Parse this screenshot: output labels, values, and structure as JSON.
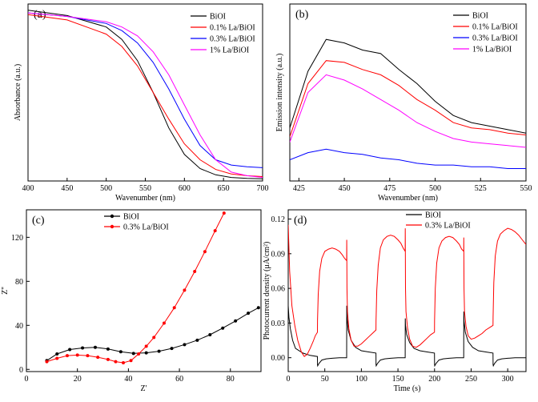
{
  "chart_data": [
    {
      "panel": "(a)",
      "type": "line",
      "xlabel": "Wavenumber (nm)",
      "ylabel": "Absorbance (a.u.)",
      "xlim": [
        400,
        700
      ],
      "ylim": [
        0,
        1
      ],
      "xticks": [
        400,
        450,
        500,
        550,
        600,
        650,
        700
      ],
      "legend_position": "top-right",
      "series": [
        {
          "name": "BiOI",
          "color": "#000000",
          "x": [
            400,
            450,
            500,
            520,
            540,
            560,
            580,
            600,
            620,
            640,
            660,
            680,
            700
          ],
          "y": [
            0.965,
            0.935,
            0.87,
            0.8,
            0.68,
            0.5,
            0.3,
            0.15,
            0.07,
            0.035,
            0.02,
            0.015,
            0.012
          ]
        },
        {
          "name": "0.1% La/BiOI",
          "color": "#ff0000",
          "x": [
            400,
            450,
            500,
            520,
            540,
            560,
            580,
            600,
            620,
            640,
            660,
            680,
            700
          ],
          "y": [
            0.94,
            0.91,
            0.83,
            0.76,
            0.65,
            0.5,
            0.35,
            0.21,
            0.12,
            0.065,
            0.04,
            0.03,
            0.025
          ]
        },
        {
          "name": "0.3% La/BiOI",
          "color": "#0000ff",
          "x": [
            400,
            450,
            500,
            520,
            540,
            560,
            580,
            600,
            620,
            640,
            660,
            680,
            700
          ],
          "y": [
            0.95,
            0.93,
            0.89,
            0.85,
            0.78,
            0.67,
            0.52,
            0.35,
            0.2,
            0.12,
            0.09,
            0.08,
            0.075
          ]
        },
        {
          "name": "1% La/BiOI",
          "color": "#ff00ff",
          "x": [
            400,
            450,
            500,
            520,
            540,
            560,
            580,
            600,
            620,
            640,
            660,
            680,
            700
          ],
          "y": [
            0.95,
            0.93,
            0.9,
            0.87,
            0.82,
            0.73,
            0.6,
            0.43,
            0.26,
            0.12,
            0.05,
            0.03,
            0.02
          ]
        }
      ]
    },
    {
      "panel": "(b)",
      "type": "line",
      "xlabel": "Wavenumber (nm)",
      "ylabel": "Emission intensity (a.u.)",
      "xlim": [
        420,
        550
      ],
      "ylim": [
        0,
        1
      ],
      "xticks": [
        425,
        450,
        475,
        500,
        525,
        550
      ],
      "legend_position": "top-right",
      "series": [
        {
          "name": "BiOI",
          "color": "#000000",
          "x": [
            420,
            430,
            440,
            450,
            460,
            470,
            480,
            490,
            500,
            510,
            520,
            530,
            540,
            550
          ],
          "y": [
            0.3,
            0.62,
            0.8,
            0.78,
            0.74,
            0.72,
            0.63,
            0.55,
            0.45,
            0.37,
            0.33,
            0.31,
            0.29,
            0.27
          ]
        },
        {
          "name": "0.1% La/BiOI",
          "color": "#ff0000",
          "x": [
            420,
            430,
            440,
            450,
            460,
            470,
            480,
            490,
            500,
            510,
            520,
            530,
            540,
            550
          ],
          "y": [
            0.25,
            0.55,
            0.68,
            0.67,
            0.63,
            0.6,
            0.54,
            0.46,
            0.4,
            0.33,
            0.3,
            0.29,
            0.27,
            0.26
          ]
        },
        {
          "name": "0.3% La/BiOI",
          "color": "#0000ff",
          "x": [
            420,
            430,
            440,
            450,
            460,
            470,
            480,
            490,
            500,
            510,
            520,
            530,
            540,
            550
          ],
          "y": [
            0.12,
            0.16,
            0.18,
            0.16,
            0.15,
            0.13,
            0.12,
            0.1,
            0.09,
            0.09,
            0.08,
            0.08,
            0.07,
            0.07
          ]
        },
        {
          "name": "1% La/BiOI",
          "color": "#ff00ff",
          "x": [
            420,
            430,
            440,
            450,
            460,
            470,
            480,
            490,
            500,
            510,
            520,
            530,
            540,
            550
          ],
          "y": [
            0.22,
            0.5,
            0.6,
            0.57,
            0.52,
            0.46,
            0.4,
            0.33,
            0.28,
            0.24,
            0.22,
            0.21,
            0.2,
            0.19
          ]
        }
      ]
    },
    {
      "panel": "(c)",
      "type": "line",
      "xlabel": "Z'",
      "ylabel": "Z''",
      "xlim": [
        0,
        92
      ],
      "ylim": [
        -2,
        145
      ],
      "xticks": [
        0,
        20,
        40,
        60,
        80
      ],
      "yticks": [
        0,
        40,
        80,
        120
      ],
      "legend_position": "top-left",
      "series": [
        {
          "name": "BiOI",
          "color": "#000000",
          "x": [
            8,
            12,
            17,
            22,
            27,
            32,
            37,
            42,
            47,
            52,
            57,
            62,
            67,
            72,
            77,
            82,
            87,
            91
          ],
          "y": [
            8,
            14,
            18,
            19.5,
            20,
            18.5,
            16,
            14.5,
            15,
            16.5,
            19,
            22.5,
            26.5,
            31.5,
            37.5,
            44,
            51,
            56
          ]
        },
        {
          "name": "0.3% La/BiOI",
          "color": "#ff0000",
          "x": [
            8,
            12,
            16,
            20,
            24,
            28,
            32,
            35,
            38,
            41,
            44,
            47,
            50,
            54,
            58,
            62,
            66,
            70,
            74,
            77.5
          ],
          "y": [
            7,
            10,
            12.5,
            13,
            12.5,
            11,
            9,
            7,
            6,
            8,
            14,
            21,
            29,
            42,
            56,
            72,
            89,
            107,
            126,
            142
          ]
        }
      ]
    },
    {
      "panel": "(d)",
      "type": "line",
      "xlabel": "Time (s)",
      "ylabel": "Photocurrent density (μA/cm²)",
      "xlim": [
        0,
        325
      ],
      "ylim": [
        -0.012,
        0.128
      ],
      "xticks": [
        0,
        50,
        100,
        150,
        200,
        250,
        300
      ],
      "yticks": [
        0.0,
        0.03,
        0.06,
        0.09,
        0.12
      ],
      "yticklabels": [
        "0.00",
        "0.03",
        "0.06",
        "0.09",
        "0.12"
      ],
      "legend_position": "top-center",
      "series": [
        {
          "name": "BiOI",
          "color": "#000000",
          "x": [
            0,
            1,
            3,
            6,
            10,
            20,
            30,
            39.9,
            40,
            40.3,
            42,
            46,
            52,
            60,
            70,
            79.9,
            80,
            80.3,
            82,
            86,
            92,
            100,
            110,
            119.9,
            120,
            120.3,
            122,
            126,
            132,
            140,
            150,
            159.9,
            160,
            160.3,
            162,
            166,
            172,
            180,
            190,
            199.9,
            200,
            200.3,
            202,
            206,
            212,
            220,
            230,
            239.9,
            240,
            240.3,
            242,
            246,
            252,
            260,
            270,
            279.9,
            280,
            280.3,
            282,
            286,
            292,
            300,
            310,
            325
          ],
          "y": [
            0.045,
            0.035,
            0.025,
            0.015,
            0.008,
            0.004,
            0.002,
            0.001,
            -0.006,
            -0.007,
            -0.005,
            -0.002,
            -0.001,
            -0.0005,
            0,
            0,
            0.045,
            0.035,
            0.024,
            0.015,
            0.009,
            0.006,
            0.005,
            0.004,
            -0.006,
            -0.007,
            -0.005,
            -0.002,
            -0.001,
            -0.0005,
            0,
            0,
            0.034,
            0.028,
            0.02,
            0.013,
            0.008,
            0.006,
            0.005,
            0.004,
            -0.006,
            -0.007,
            -0.005,
            -0.002,
            -0.001,
            -0.0005,
            0,
            0,
            0.04,
            0.032,
            0.022,
            0.014,
            0.009,
            0.006,
            0.005,
            0.004,
            -0.006,
            -0.007,
            -0.005,
            -0.002,
            -0.001,
            -0.0005,
            0,
            0
          ]
        },
        {
          "name": "0.3% La/BiOI",
          "color": "#ff0000",
          "x": [
            0,
            2,
            5,
            9,
            13,
            18,
            22,
            26,
            30,
            34,
            37,
            39.9,
            40,
            41,
            43,
            46,
            50,
            55,
            60,
            65,
            70,
            74,
            77,
            79.9,
            80,
            80.3,
            81,
            83,
            86,
            90,
            95,
            100,
            105,
            110,
            115,
            119.9,
            120,
            121,
            123,
            126,
            130,
            135,
            140,
            145,
            150,
            154,
            157,
            159.9,
            160,
            160.3,
            161,
            163,
            166,
            170,
            175,
            180,
            185,
            190,
            195,
            199.9,
            200,
            201,
            203,
            206,
            210,
            215,
            220,
            225,
            230,
            234,
            237,
            239.9,
            240,
            240.3,
            241,
            243,
            246,
            250,
            255,
            260,
            265,
            270,
            275,
            279.9,
            280,
            281,
            283,
            286,
            290,
            295,
            300,
            305,
            310,
            315,
            320,
            325
          ],
          "y": [
            0.115,
            0.075,
            0.045,
            0.028,
            0.015,
            0.005,
            0.001,
            0.003,
            0.008,
            0.014,
            0.019,
            0.022,
            0.032,
            0.055,
            0.075,
            0.086,
            0.092,
            0.094,
            0.095,
            0.094,
            0.092,
            0.089,
            0.086,
            0.084,
            0.102,
            0.06,
            0.04,
            0.025,
            0.015,
            0.01,
            0.01,
            0.012,
            0.015,
            0.018,
            0.021,
            0.024,
            0.032,
            0.058,
            0.08,
            0.095,
            0.102,
            0.105,
            0.106,
            0.105,
            0.102,
            0.099,
            0.095,
            0.092,
            0.112,
            0.06,
            0.04,
            0.026,
            0.016,
            0.01,
            0.009,
            0.011,
            0.014,
            0.017,
            0.02,
            0.022,
            0.032,
            0.06,
            0.082,
            0.095,
            0.101,
            0.104,
            0.105,
            0.104,
            0.101,
            0.098,
            0.094,
            0.092,
            0.104,
            0.06,
            0.04,
            0.027,
            0.019,
            0.016,
            0.017,
            0.019,
            0.021,
            0.024,
            0.026,
            0.028,
            0.035,
            0.065,
            0.088,
            0.101,
            0.107,
            0.11,
            0.112,
            0.111,
            0.109,
            0.106,
            0.102,
            0.098
          ]
        }
      ]
    }
  ]
}
